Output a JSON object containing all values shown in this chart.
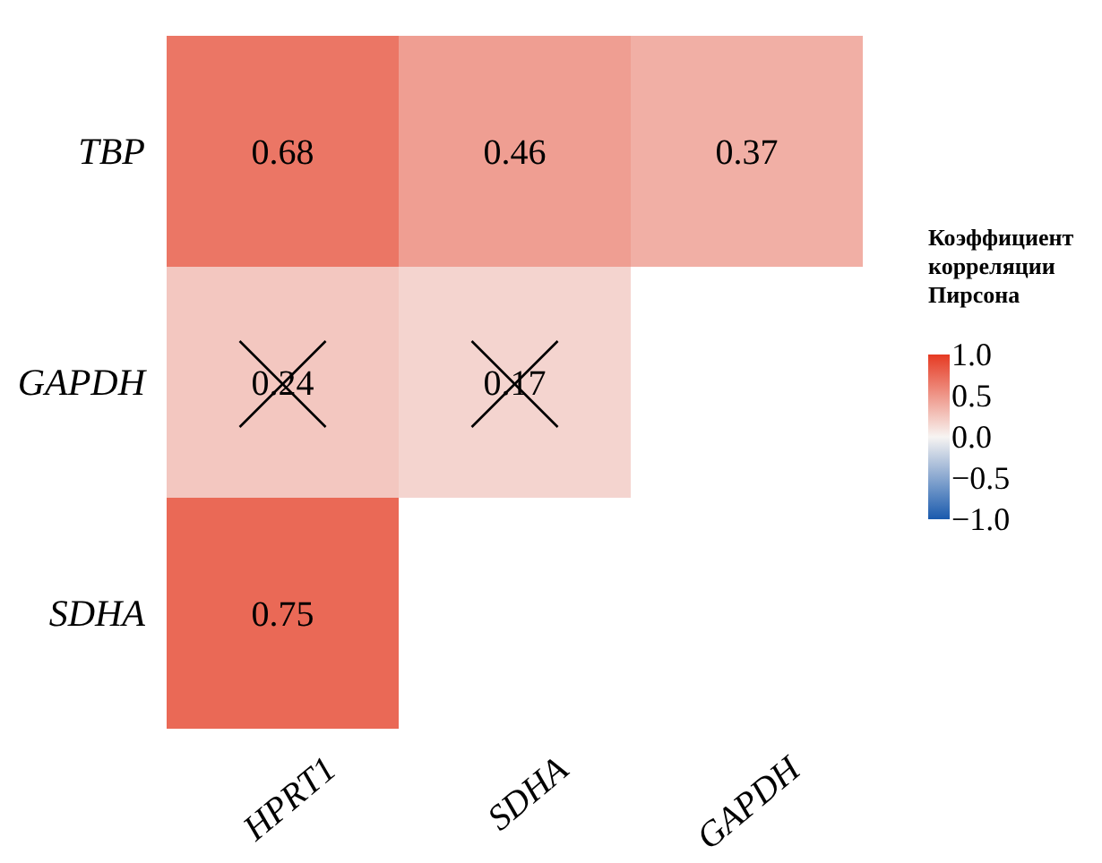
{
  "chart_data": {
    "type": "heatmap",
    "categories": [
      "HPRT1",
      "SDHA",
      "GAPDH"
    ],
    "y_categories": [
      "TBP",
      "GAPDH",
      "SDHA"
    ],
    "cells": [
      [
        0.68,
        0.46,
        0.37
      ],
      [
        0.24,
        0.17,
        null
      ],
      [
        0.75,
        null,
        null
      ]
    ],
    "data_labels": true,
    "clabel": "Коэффициент корреляции Пирсона",
    "clim": [
      -1,
      1
    ],
    "cticks": [
      {
        "value": 1,
        "label": "1.0"
      },
      {
        "value": 0.5,
        "label": "0.5"
      },
      {
        "value": 0,
        "label": "0.0"
      },
      {
        "value": -0.5,
        "label": "−0.5"
      },
      {
        "value": -1,
        "label": "−1.0"
      }
    ]
  }
}
